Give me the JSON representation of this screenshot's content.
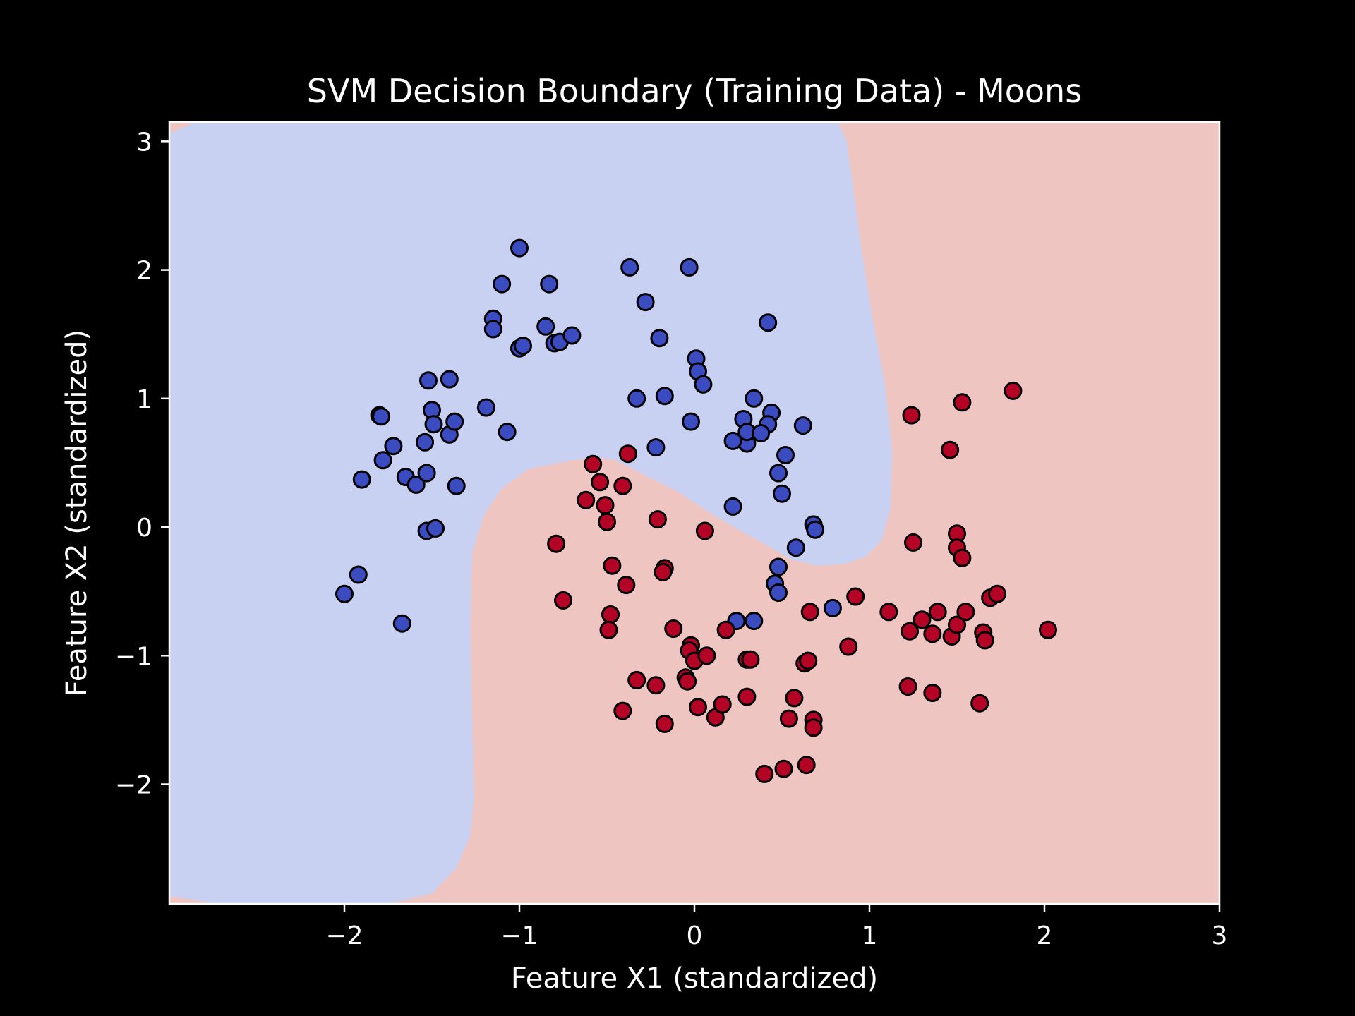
{
  "chart_data": {
    "type": "scatter",
    "title": "SVM Decision Boundary (Training Data) - Moons",
    "xlabel": "Feature X1 (standardized)",
    "ylabel": "Feature X2 (standardized)",
    "xlim": [
      -3,
      3
    ],
    "ylim": [
      -2.93,
      3.15
    ],
    "xticks": [
      -2,
      -1,
      0,
      1,
      2,
      3
    ],
    "xtick_labels": [
      "−2",
      "−1",
      "0",
      "1",
      "2",
      "3"
    ],
    "yticks": [
      -2,
      -1,
      0,
      1,
      2,
      3
    ],
    "ytick_labels": [
      "−2",
      "−1",
      "0",
      "1",
      "2",
      "3"
    ],
    "grid": false,
    "legend": "none",
    "colors": {
      "background": "#000000",
      "region_class_0": "#c8d1f2",
      "region_class_1": "#efc5c2",
      "points_class_0": "#3b4cc0",
      "points_class_1": "#b40426",
      "edge": "#000000",
      "axes": "#ffffff"
    },
    "decision_boundary": [
      [
        -3.0,
        3.06
      ],
      [
        -2.85,
        3.15
      ],
      [
        0.82,
        3.15
      ],
      [
        0.87,
        3.0
      ],
      [
        0.9,
        2.7
      ],
      [
        0.95,
        2.2
      ],
      [
        1.02,
        1.6
      ],
      [
        1.09,
        1.1
      ],
      [
        1.13,
        0.6
      ],
      [
        1.12,
        0.15
      ],
      [
        1.07,
        -0.1
      ],
      [
        0.98,
        -0.23
      ],
      [
        0.85,
        -0.29
      ],
      [
        0.7,
        -0.3
      ],
      [
        0.55,
        -0.25
      ],
      [
        0.4,
        -0.13
      ],
      [
        0.25,
        -0.02
      ],
      [
        0.1,
        0.1
      ],
      [
        -0.1,
        0.28
      ],
      [
        -0.25,
        0.38
      ],
      [
        -0.35,
        0.45
      ],
      [
        -0.45,
        0.52
      ],
      [
        -0.55,
        0.54
      ],
      [
        -0.7,
        0.52
      ],
      [
        -0.95,
        0.45
      ],
      [
        -1.1,
        0.3
      ],
      [
        -1.2,
        0.1
      ],
      [
        -1.27,
        -0.2
      ],
      [
        -1.28,
        -0.8
      ],
      [
        -1.27,
        -1.5
      ],
      [
        -1.26,
        -2.1
      ],
      [
        -1.28,
        -2.4
      ],
      [
        -1.36,
        -2.65
      ],
      [
        -1.5,
        -2.85
      ],
      [
        -1.75,
        -2.93
      ],
      [
        -2.75,
        -2.93
      ],
      [
        -2.85,
        -2.9
      ],
      [
        -3.0,
        -2.87
      ]
    ],
    "series": [
      {
        "class": 0,
        "points": [
          [
            -1.0,
            2.17
          ],
          [
            -1.1,
            1.89
          ],
          [
            -0.83,
            1.89
          ],
          [
            -1.15,
            1.62
          ],
          [
            -1.15,
            1.54
          ],
          [
            -1.0,
            1.39
          ],
          [
            -0.98,
            1.41
          ],
          [
            -0.85,
            1.56
          ],
          [
            -0.8,
            1.43
          ],
          [
            -0.77,
            1.44
          ],
          [
            -0.7,
            1.49
          ],
          [
            -0.37,
            2.02
          ],
          [
            -0.03,
            2.02
          ],
          [
            -0.28,
            1.75
          ],
          [
            -0.2,
            1.47
          ],
          [
            0.01,
            1.31
          ],
          [
            0.02,
            1.21
          ],
          [
            0.05,
            1.11
          ],
          [
            -0.33,
            1.0
          ],
          [
            -0.17,
            1.02
          ],
          [
            -0.22,
            0.62
          ],
          [
            -0.02,
            0.82
          ],
          [
            -1.07,
            0.74
          ],
          [
            -1.19,
            0.93
          ],
          [
            0.42,
            1.59
          ],
          [
            0.34,
            1.0
          ],
          [
            0.44,
            0.89
          ],
          [
            0.42,
            0.8
          ],
          [
            0.28,
            0.84
          ],
          [
            0.3,
            0.65
          ],
          [
            0.3,
            0.74
          ],
          [
            0.38,
            0.73
          ],
          [
            0.22,
            0.67
          ],
          [
            0.52,
            0.56
          ],
          [
            0.48,
            0.42
          ],
          [
            0.5,
            0.26
          ],
          [
            0.62,
            0.79
          ],
          [
            0.22,
            0.16
          ],
          [
            0.68,
            0.02
          ],
          [
            0.69,
            -0.02
          ],
          [
            0.58,
            -0.16
          ],
          [
            0.48,
            -0.31
          ],
          [
            0.46,
            -0.44
          ],
          [
            0.48,
            -0.51
          ],
          [
            0.79,
            -0.63
          ],
          [
            0.24,
            -0.73
          ],
          [
            0.34,
            -0.73
          ],
          [
            -1.52,
            1.14
          ],
          [
            -1.4,
            1.15
          ],
          [
            -1.5,
            0.91
          ],
          [
            -1.49,
            0.8
          ],
          [
            -1.4,
            0.72
          ],
          [
            -1.37,
            0.82
          ],
          [
            -1.54,
            0.66
          ],
          [
            -1.8,
            0.87
          ],
          [
            -1.79,
            0.86
          ],
          [
            -1.72,
            0.63
          ],
          [
            -1.78,
            0.52
          ],
          [
            -1.9,
            0.37
          ],
          [
            -1.65,
            0.39
          ],
          [
            -1.59,
            0.33
          ],
          [
            -1.53,
            0.42
          ],
          [
            -1.36,
            0.32
          ],
          [
            -1.53,
            -0.03
          ],
          [
            -1.48,
            -0.01
          ],
          [
            -1.92,
            -0.37
          ],
          [
            -2.0,
            -0.52
          ],
          [
            -1.67,
            -0.75
          ]
        ]
      },
      {
        "class": 1,
        "points": [
          [
            1.82,
            1.06
          ],
          [
            1.24,
            0.87
          ],
          [
            1.53,
            0.97
          ],
          [
            1.46,
            0.6
          ],
          [
            1.5,
            -0.05
          ],
          [
            1.25,
            -0.12
          ],
          [
            1.5,
            -0.16
          ],
          [
            1.53,
            -0.24
          ],
          [
            -0.58,
            0.49
          ],
          [
            -0.54,
            0.35
          ],
          [
            -0.41,
            0.32
          ],
          [
            -0.38,
            0.57
          ],
          [
            -0.62,
            0.21
          ],
          [
            -0.51,
            0.17
          ],
          [
            -0.5,
            0.04
          ],
          [
            -0.21,
            0.06
          ],
          [
            0.06,
            -0.03
          ],
          [
            -0.79,
            -0.13
          ],
          [
            -0.47,
            -0.3
          ],
          [
            -0.17,
            -0.32
          ],
          [
            -0.18,
            -0.35
          ],
          [
            -0.75,
            -0.57
          ],
          [
            -0.39,
            -0.45
          ],
          [
            -0.48,
            -0.68
          ],
          [
            -0.49,
            -0.8
          ],
          [
            -0.12,
            -0.79
          ],
          [
            0.18,
            -0.8
          ],
          [
            -0.02,
            -0.92
          ],
          [
            -0.03,
            -0.96
          ],
          [
            0.0,
            -1.04
          ],
          [
            0.07,
            -1.0
          ],
          [
            0.3,
            -1.03
          ],
          [
            0.32,
            -1.03
          ],
          [
            0.63,
            -1.06
          ],
          [
            0.65,
            -1.04
          ],
          [
            0.66,
            -0.66
          ],
          [
            0.92,
            -0.54
          ],
          [
            0.88,
            -0.93
          ],
          [
            -0.33,
            -1.19
          ],
          [
            -0.22,
            -1.23
          ],
          [
            -0.05,
            -1.17
          ],
          [
            -0.04,
            -1.2
          ],
          [
            -0.41,
            -1.43
          ],
          [
            -0.17,
            -1.53
          ],
          [
            0.02,
            -1.4
          ],
          [
            0.12,
            -1.48
          ],
          [
            0.16,
            -1.38
          ],
          [
            0.3,
            -1.32
          ],
          [
            0.57,
            -1.33
          ],
          [
            0.54,
            -1.49
          ],
          [
            0.68,
            -1.5
          ],
          [
            0.68,
            -1.56
          ],
          [
            0.64,
            -1.85
          ],
          [
            0.51,
            -1.88
          ],
          [
            0.4,
            -1.92
          ],
          [
            1.11,
            -0.66
          ],
          [
            1.23,
            -0.81
          ],
          [
            1.3,
            -0.72
          ],
          [
            1.36,
            -0.83
          ],
          [
            1.39,
            -0.66
          ],
          [
            1.47,
            -0.85
          ],
          [
            1.5,
            -0.76
          ],
          [
            1.55,
            -0.66
          ],
          [
            1.65,
            -0.82
          ],
          [
            1.66,
            -0.88
          ],
          [
            1.69,
            -0.55
          ],
          [
            1.73,
            -0.52
          ],
          [
            2.02,
            -0.8
          ],
          [
            1.22,
            -1.24
          ],
          [
            1.36,
            -1.29
          ],
          [
            1.63,
            -1.37
          ]
        ]
      }
    ]
  }
}
